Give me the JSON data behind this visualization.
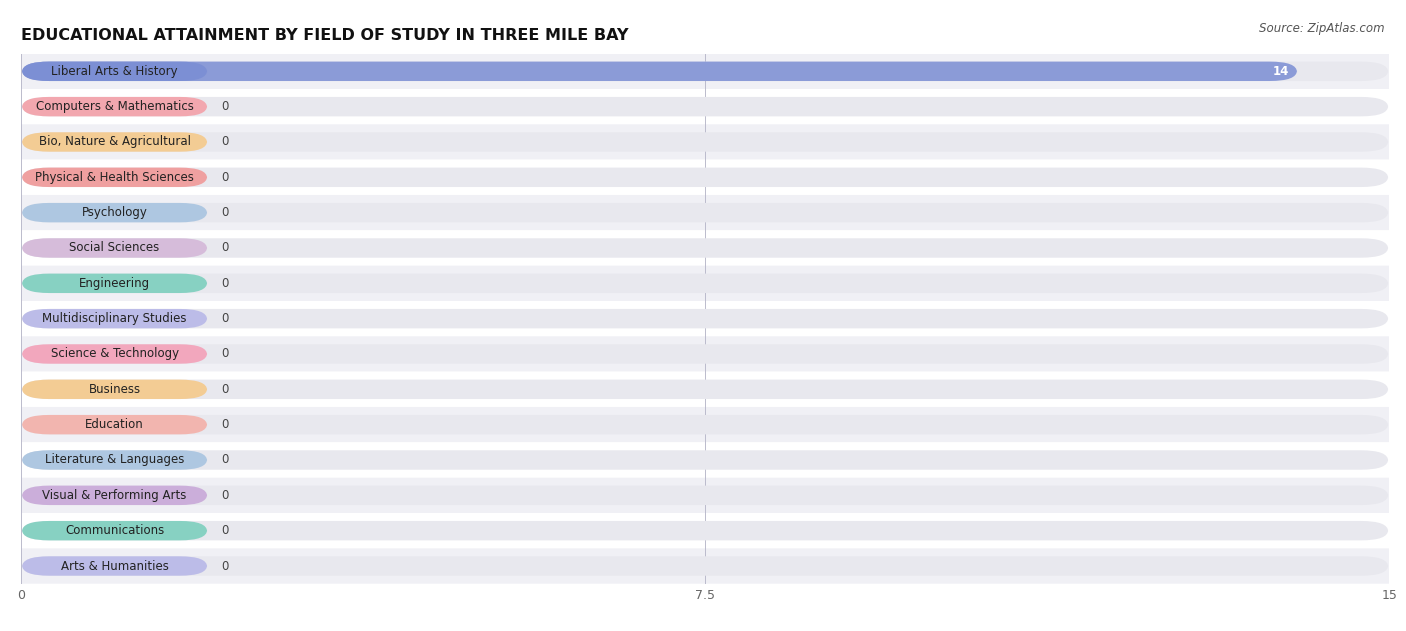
{
  "title": "EDUCATIONAL ATTAINMENT BY FIELD OF STUDY IN THREE MILE BAY",
  "source": "Source: ZipAtlas.com",
  "categories": [
    "Liberal Arts & History",
    "Computers & Mathematics",
    "Bio, Nature & Agricultural",
    "Physical & Health Sciences",
    "Psychology",
    "Social Sciences",
    "Engineering",
    "Multidisciplinary Studies",
    "Science & Technology",
    "Business",
    "Education",
    "Literature & Languages",
    "Visual & Performing Arts",
    "Communications",
    "Arts & Humanities"
  ],
  "values": [
    14,
    0,
    0,
    0,
    0,
    0,
    0,
    0,
    0,
    0,
    0,
    0,
    0,
    0,
    0
  ],
  "bar_colors": [
    "#7b8ed4",
    "#f4a0a8",
    "#f5c98a",
    "#f09898",
    "#a8c4e0",
    "#d4b8d8",
    "#7dcfbe",
    "#b8b8e8",
    "#f4a0b8",
    "#f5c98a",
    "#f4b0a8",
    "#a8c4e0",
    "#c8a8d8",
    "#7dcfbe",
    "#b8b8e8"
  ],
  "xlim": [
    0,
    15
  ],
  "xticks": [
    0,
    7.5,
    15
  ],
  "background_color": "#ffffff",
  "row_bg_odd": "#f0f0f5",
  "row_bg_even": "#ffffff",
  "title_fontsize": 11.5,
  "label_fontsize": 8.5,
  "value_fontsize": 8.5,
  "source_fontsize": 8.5
}
